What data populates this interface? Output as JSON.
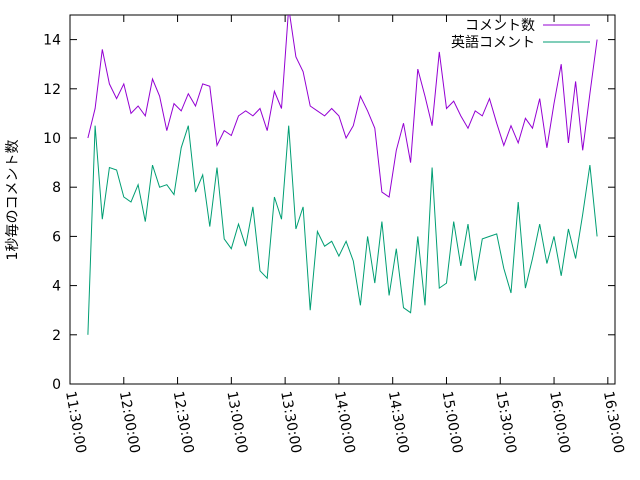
{
  "chart_data": {
    "type": "line",
    "ylabel": "1秒毎のコメント数",
    "x": [
      "11:40:00",
      "11:44:00",
      "11:48:00",
      "11:52:00",
      "11:56:00",
      "12:00:00",
      "12:04:00",
      "12:08:00",
      "12:12:00",
      "12:16:00",
      "12:20:00",
      "12:24:00",
      "12:28:00",
      "12:32:00",
      "12:36:00",
      "12:40:00",
      "12:44:00",
      "12:48:00",
      "12:52:00",
      "12:56:00",
      "13:00:00",
      "13:04:00",
      "13:08:00",
      "13:12:00",
      "13:16:00",
      "13:20:00",
      "13:24:00",
      "13:28:00",
      "13:32:00",
      "13:36:00",
      "13:40:00",
      "13:44:00",
      "13:48:00",
      "13:52:00",
      "13:56:00",
      "14:00:00",
      "14:04:00",
      "14:08:00",
      "14:12:00",
      "14:16:00",
      "14:20:00",
      "14:24:00",
      "14:28:00",
      "14:32:00",
      "14:36:00",
      "14:40:00",
      "14:44:00",
      "14:48:00",
      "14:52:00",
      "14:56:00",
      "15:00:00",
      "15:04:00",
      "15:08:00",
      "15:12:00",
      "15:16:00",
      "15:20:00",
      "15:24:00",
      "15:28:00",
      "15:32:00",
      "15:36:00",
      "15:40:00",
      "15:44:00",
      "15:48:00",
      "15:52:00",
      "15:56:00",
      "16:00:00",
      "16:04:00",
      "16:08:00",
      "16:12:00",
      "16:16:00",
      "16:20:00",
      "16:24:00"
    ],
    "series": [
      {
        "name": "コメント数",
        "color": "#9400d3",
        "values": [
          10,
          11.2,
          13.6,
          12.2,
          11.6,
          12.2,
          11.0,
          11.3,
          10.9,
          12.4,
          11.7,
          10.3,
          11.4,
          11.1,
          11.8,
          11.3,
          12.2,
          12.1,
          9.7,
          10.3,
          10.1,
          10.9,
          11.1,
          10.9,
          11.2,
          10.3,
          11.9,
          11.2,
          15.3,
          13.3,
          12.7,
          11.3,
          11.1,
          10.9,
          11.2,
          10.9,
          10.0,
          10.5,
          11.7,
          11.1,
          10.4,
          7.8,
          7.6,
          9.5,
          10.6,
          9.0,
          12.8,
          11.7,
          10.5,
          13.5,
          11.2,
          11.5,
          10.9,
          10.4,
          11.1,
          10.9,
          11.6,
          10.6,
          9.7,
          10.5,
          9.8,
          10.8,
          10.4,
          11.6,
          9.6,
          11.4,
          13.0,
          9.8,
          12.3,
          9.5,
          11.8,
          14.0
        ]
      },
      {
        "name": "英語コメント",
        "color": "#009e73",
        "values": [
          2.0,
          10.5,
          6.7,
          8.8,
          8.7,
          7.6,
          7.4,
          8.1,
          6.6,
          8.9,
          8.0,
          8.1,
          7.7,
          9.6,
          10.5,
          7.8,
          8.5,
          6.4,
          8.8,
          5.9,
          5.5,
          6.5,
          5.6,
          7.2,
          4.6,
          4.3,
          7.6,
          6.7,
          10.5,
          6.3,
          7.2,
          3.0,
          6.2,
          5.6,
          5.8,
          5.2,
          5.8,
          5.0,
          3.2,
          6.0,
          4.1,
          6.6,
          3.6,
          5.5,
          3.1,
          2.9,
          6.0,
          3.2,
          8.8,
          3.9,
          4.1,
          6.6,
          4.8,
          6.5,
          4.2,
          5.9,
          6.0,
          6.1,
          4.7,
          3.7,
          7.4,
          3.9,
          5.1,
          6.5,
          4.9,
          6.0,
          4.4,
          6.3,
          5.1,
          6.9,
          8.9,
          6.0
        ]
      }
    ],
    "xlim": [
      "11:30:00",
      "16:34:00"
    ],
    "xticks": [
      "11:30:00",
      "12:00:00",
      "12:30:00",
      "13:00:00",
      "13:30:00",
      "14:00:00",
      "14:30:00",
      "15:00:00",
      "15:30:00",
      "16:00:00",
      "16:30:00"
    ],
    "ylim": [
      0,
      15
    ],
    "yticks": [
      0,
      2,
      4,
      6,
      8,
      10,
      12,
      14
    ],
    "grid": false,
    "legend": "top-right"
  }
}
